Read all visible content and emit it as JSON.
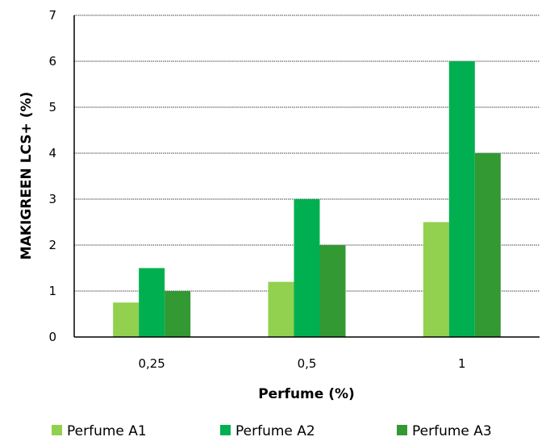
{
  "chart_data": {
    "type": "bar",
    "title": "",
    "xlabel": "Perfume (%)",
    "ylabel": "MAKIGREEN LCS+ (%)",
    "categories": [
      "0,25",
      "0,5",
      "1"
    ],
    "ylim": [
      0,
      7
    ],
    "yticks": [
      "0",
      "1",
      "2",
      "3",
      "4",
      "5",
      "6",
      "7"
    ],
    "grid": true,
    "legend_position": "bottom",
    "series": [
      {
        "name": "Perfume A1",
        "color": "#92d050",
        "values": [
          0.75,
          1.2,
          2.5
        ]
      },
      {
        "name": "Perfume A2",
        "color": "#00b050",
        "values": [
          1.5,
          3,
          6
        ]
      },
      {
        "name": "Perfume A3",
        "color": "#339933",
        "values": [
          1,
          2,
          4
        ]
      }
    ]
  }
}
